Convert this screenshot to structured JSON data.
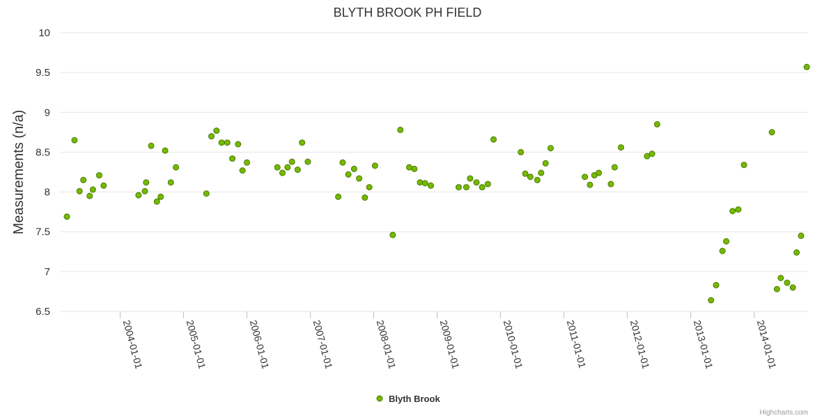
{
  "chart_data": {
    "type": "scatter",
    "title": "BLYTH BROOK PH FIELD",
    "ylabel": "Measurements (n/a)",
    "xlabel": "",
    "ylim": [
      6.5,
      10
    ],
    "yticks": [
      "6.5",
      "7",
      "7.5",
      "8",
      "8.5",
      "9",
      "9.5",
      "10"
    ],
    "xlim": [
      2003.05,
      2014.85
    ],
    "xticks": [
      {
        "label": "2004-01-01",
        "value": 2004
      },
      {
        "label": "2005-01-01",
        "value": 2005
      },
      {
        "label": "2006-01-01",
        "value": 2006
      },
      {
        "label": "2007-01-01",
        "value": 2007
      },
      {
        "label": "2008-01-01",
        "value": 2008
      },
      {
        "label": "2009-01-01",
        "value": 2009
      },
      {
        "label": "2010-01-01",
        "value": 2010
      },
      {
        "label": "2011-01-01",
        "value": 2011
      },
      {
        "label": "2012-01-01",
        "value": 2012
      },
      {
        "label": "2013-01-01",
        "value": 2013
      },
      {
        "label": "2014-01-01",
        "value": 2014
      }
    ],
    "legend_position": "bottom-center",
    "series": [
      {
        "name": "Blyth Brook",
        "color": "#76b900",
        "edge_color": "#4a7a00",
        "points": [
          [
            2003.16,
            7.69
          ],
          [
            2003.28,
            8.65
          ],
          [
            2003.36,
            8.01
          ],
          [
            2003.42,
            8.15
          ],
          [
            2003.52,
            7.95
          ],
          [
            2003.57,
            8.03
          ],
          [
            2003.67,
            8.21
          ],
          [
            2003.74,
            8.08
          ],
          [
            2004.29,
            7.96
          ],
          [
            2004.39,
            8.01
          ],
          [
            2004.41,
            8.12
          ],
          [
            2004.49,
            8.58
          ],
          [
            2004.58,
            7.88
          ],
          [
            2004.64,
            7.94
          ],
          [
            2004.71,
            8.52
          ],
          [
            2004.8,
            8.12
          ],
          [
            2004.88,
            8.31
          ],
          [
            2005.36,
            7.98
          ],
          [
            2005.44,
            8.7
          ],
          [
            2005.52,
            8.77
          ],
          [
            2005.6,
            8.62
          ],
          [
            2005.69,
            8.62
          ],
          [
            2005.77,
            8.42
          ],
          [
            2005.86,
            8.6
          ],
          [
            2005.93,
            8.27
          ],
          [
            2006.0,
            8.37
          ],
          [
            2006.48,
            8.31
          ],
          [
            2006.56,
            8.24
          ],
          [
            2006.64,
            8.31
          ],
          [
            2006.71,
            8.38
          ],
          [
            2006.8,
            8.28
          ],
          [
            2006.87,
            8.62
          ],
          [
            2006.96,
            8.38
          ],
          [
            2007.44,
            7.94
          ],
          [
            2007.51,
            8.37
          ],
          [
            2007.6,
            8.22
          ],
          [
            2007.69,
            8.29
          ],
          [
            2007.77,
            8.17
          ],
          [
            2007.86,
            7.93
          ],
          [
            2007.93,
            8.06
          ],
          [
            2008.02,
            8.33
          ],
          [
            2008.3,
            7.46
          ],
          [
            2008.42,
            8.78
          ],
          [
            2008.56,
            8.31
          ],
          [
            2008.64,
            8.29
          ],
          [
            2008.73,
            8.12
          ],
          [
            2008.81,
            8.11
          ],
          [
            2008.9,
            8.08
          ],
          [
            2009.34,
            8.06
          ],
          [
            2009.46,
            8.06
          ],
          [
            2009.52,
            8.17
          ],
          [
            2009.62,
            8.12
          ],
          [
            2009.71,
            8.06
          ],
          [
            2009.8,
            8.1
          ],
          [
            2009.89,
            8.66
          ],
          [
            2010.32,
            8.5
          ],
          [
            2010.39,
            8.23
          ],
          [
            2010.47,
            8.19
          ],
          [
            2010.58,
            8.15
          ],
          [
            2010.64,
            8.24
          ],
          [
            2010.71,
            8.36
          ],
          [
            2010.79,
            8.55
          ],
          [
            2011.33,
            8.19
          ],
          [
            2011.41,
            8.09
          ],
          [
            2011.48,
            8.21
          ],
          [
            2011.55,
            8.24
          ],
          [
            2011.74,
            8.1
          ],
          [
            2011.8,
            8.31
          ],
          [
            2011.9,
            8.56
          ],
          [
            2012.31,
            8.45
          ],
          [
            2012.39,
            8.48
          ],
          [
            2012.47,
            8.85
          ],
          [
            2013.32,
            6.64
          ],
          [
            2013.4,
            6.83
          ],
          [
            2013.5,
            7.26
          ],
          [
            2013.56,
            7.38
          ],
          [
            2013.66,
            7.76
          ],
          [
            2013.75,
            7.78
          ],
          [
            2013.84,
            8.34
          ],
          [
            2014.28,
            8.75
          ],
          [
            2014.36,
            6.78
          ],
          [
            2014.42,
            6.92
          ],
          [
            2014.52,
            6.86
          ],
          [
            2014.61,
            6.8
          ],
          [
            2014.67,
            7.24
          ],
          [
            2014.74,
            7.45
          ],
          [
            2014.83,
            9.57
          ]
        ]
      }
    ]
  },
  "credits": "Highcharts.com"
}
